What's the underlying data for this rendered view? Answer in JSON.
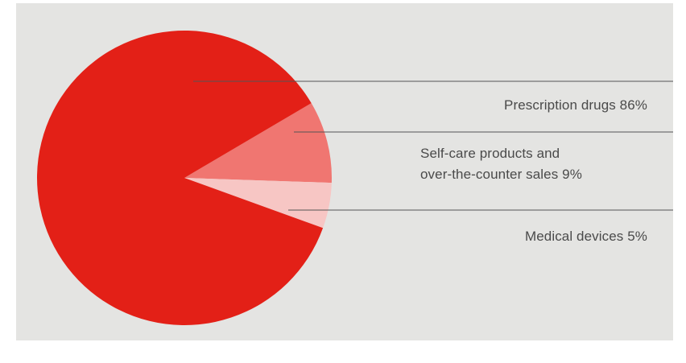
{
  "chart_data": {
    "type": "pie",
    "title": "",
    "slices": [
      {
        "label": "Prescription drugs",
        "value": 86,
        "value_label": "86%",
        "color": "#e32017"
      },
      {
        "label": "Self-care products and over-the-counter sales",
        "value": 9,
        "value_label": "9%",
        "color": "#f07671"
      },
      {
        "label": "Medical devices",
        "value": 5,
        "value_label": "5%",
        "color": "#f7c6c4"
      }
    ],
    "labels": {
      "prescription": "Prescription drugs 86%",
      "selfcare_line1": "Self-care products and",
      "selfcare_line2": "over-the-counter sales 9%",
      "devices": "Medical devices 5%"
    },
    "background_color": "#e4e4e2",
    "legend": "none"
  }
}
